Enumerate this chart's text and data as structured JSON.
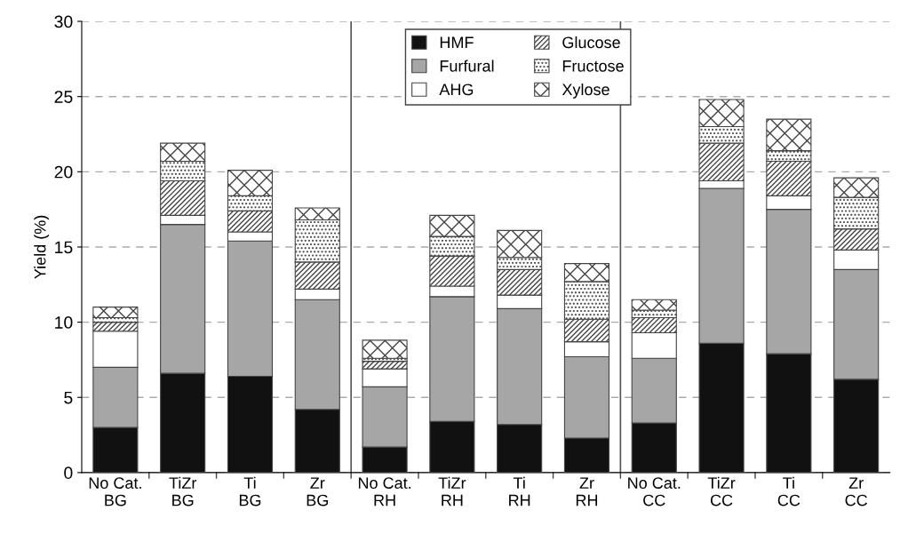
{
  "chart_data": {
    "type": "bar",
    "stacked": true,
    "ylabel": "Yield (%)",
    "categories": [
      "No Cat.\nBG",
      "TiZr\nBG",
      "Ti\nBG",
      "Zr\nBG",
      "No Cat.\nRH",
      "TiZr\nRH",
      "Ti\nRH",
      "Zr\nRH",
      "No Cat.\nCC",
      "TiZr\nCC",
      "Ti\nCC",
      "Zr\nCC"
    ],
    "series": [
      {
        "name": "HMF",
        "color": "#111111",
        "values": [
          3.0,
          6.6,
          6.4,
          4.2,
          1.7,
          3.4,
          3.2,
          2.3,
          3.3,
          8.6,
          7.9,
          6.2
        ]
      },
      {
        "name": "Furfural",
        "color": "#a6a6a6",
        "values": [
          4.0,
          9.9,
          9.0,
          7.3,
          4.0,
          8.3,
          7.7,
          5.4,
          4.3,
          10.3,
          9.6,
          7.3
        ]
      },
      {
        "name": "AHG",
        "color": "#ffffff",
        "values": [
          2.4,
          0.6,
          0.6,
          0.7,
          1.2,
          0.7,
          0.9,
          1.0,
          1.7,
          0.5,
          0.9,
          1.3
        ]
      },
      {
        "name": "Glucose",
        "color": "#444444",
        "values": [
          0.6,
          2.3,
          1.4,
          1.8,
          0.5,
          2.0,
          1.7,
          1.5,
          1.0,
          2.5,
          2.3,
          1.4
        ]
      },
      {
        "name": "Fructose",
        "color": "#444444",
        "values": [
          0.3,
          1.3,
          1.0,
          2.8,
          0.2,
          1.3,
          0.8,
          2.5,
          0.5,
          1.1,
          0.7,
          2.1
        ]
      },
      {
        "name": "Xylose",
        "color": "#444444",
        "values": [
          0.7,
          1.2,
          1.7,
          0.8,
          1.2,
          1.4,
          1.8,
          1.2,
          0.7,
          1.8,
          2.1,
          1.3
        ]
      }
    ],
    "ylim": [
      0,
      30
    ],
    "yticks": [
      0,
      5,
      10,
      15,
      20,
      25,
      30
    ],
    "grid": "y",
    "legend": "top"
  }
}
